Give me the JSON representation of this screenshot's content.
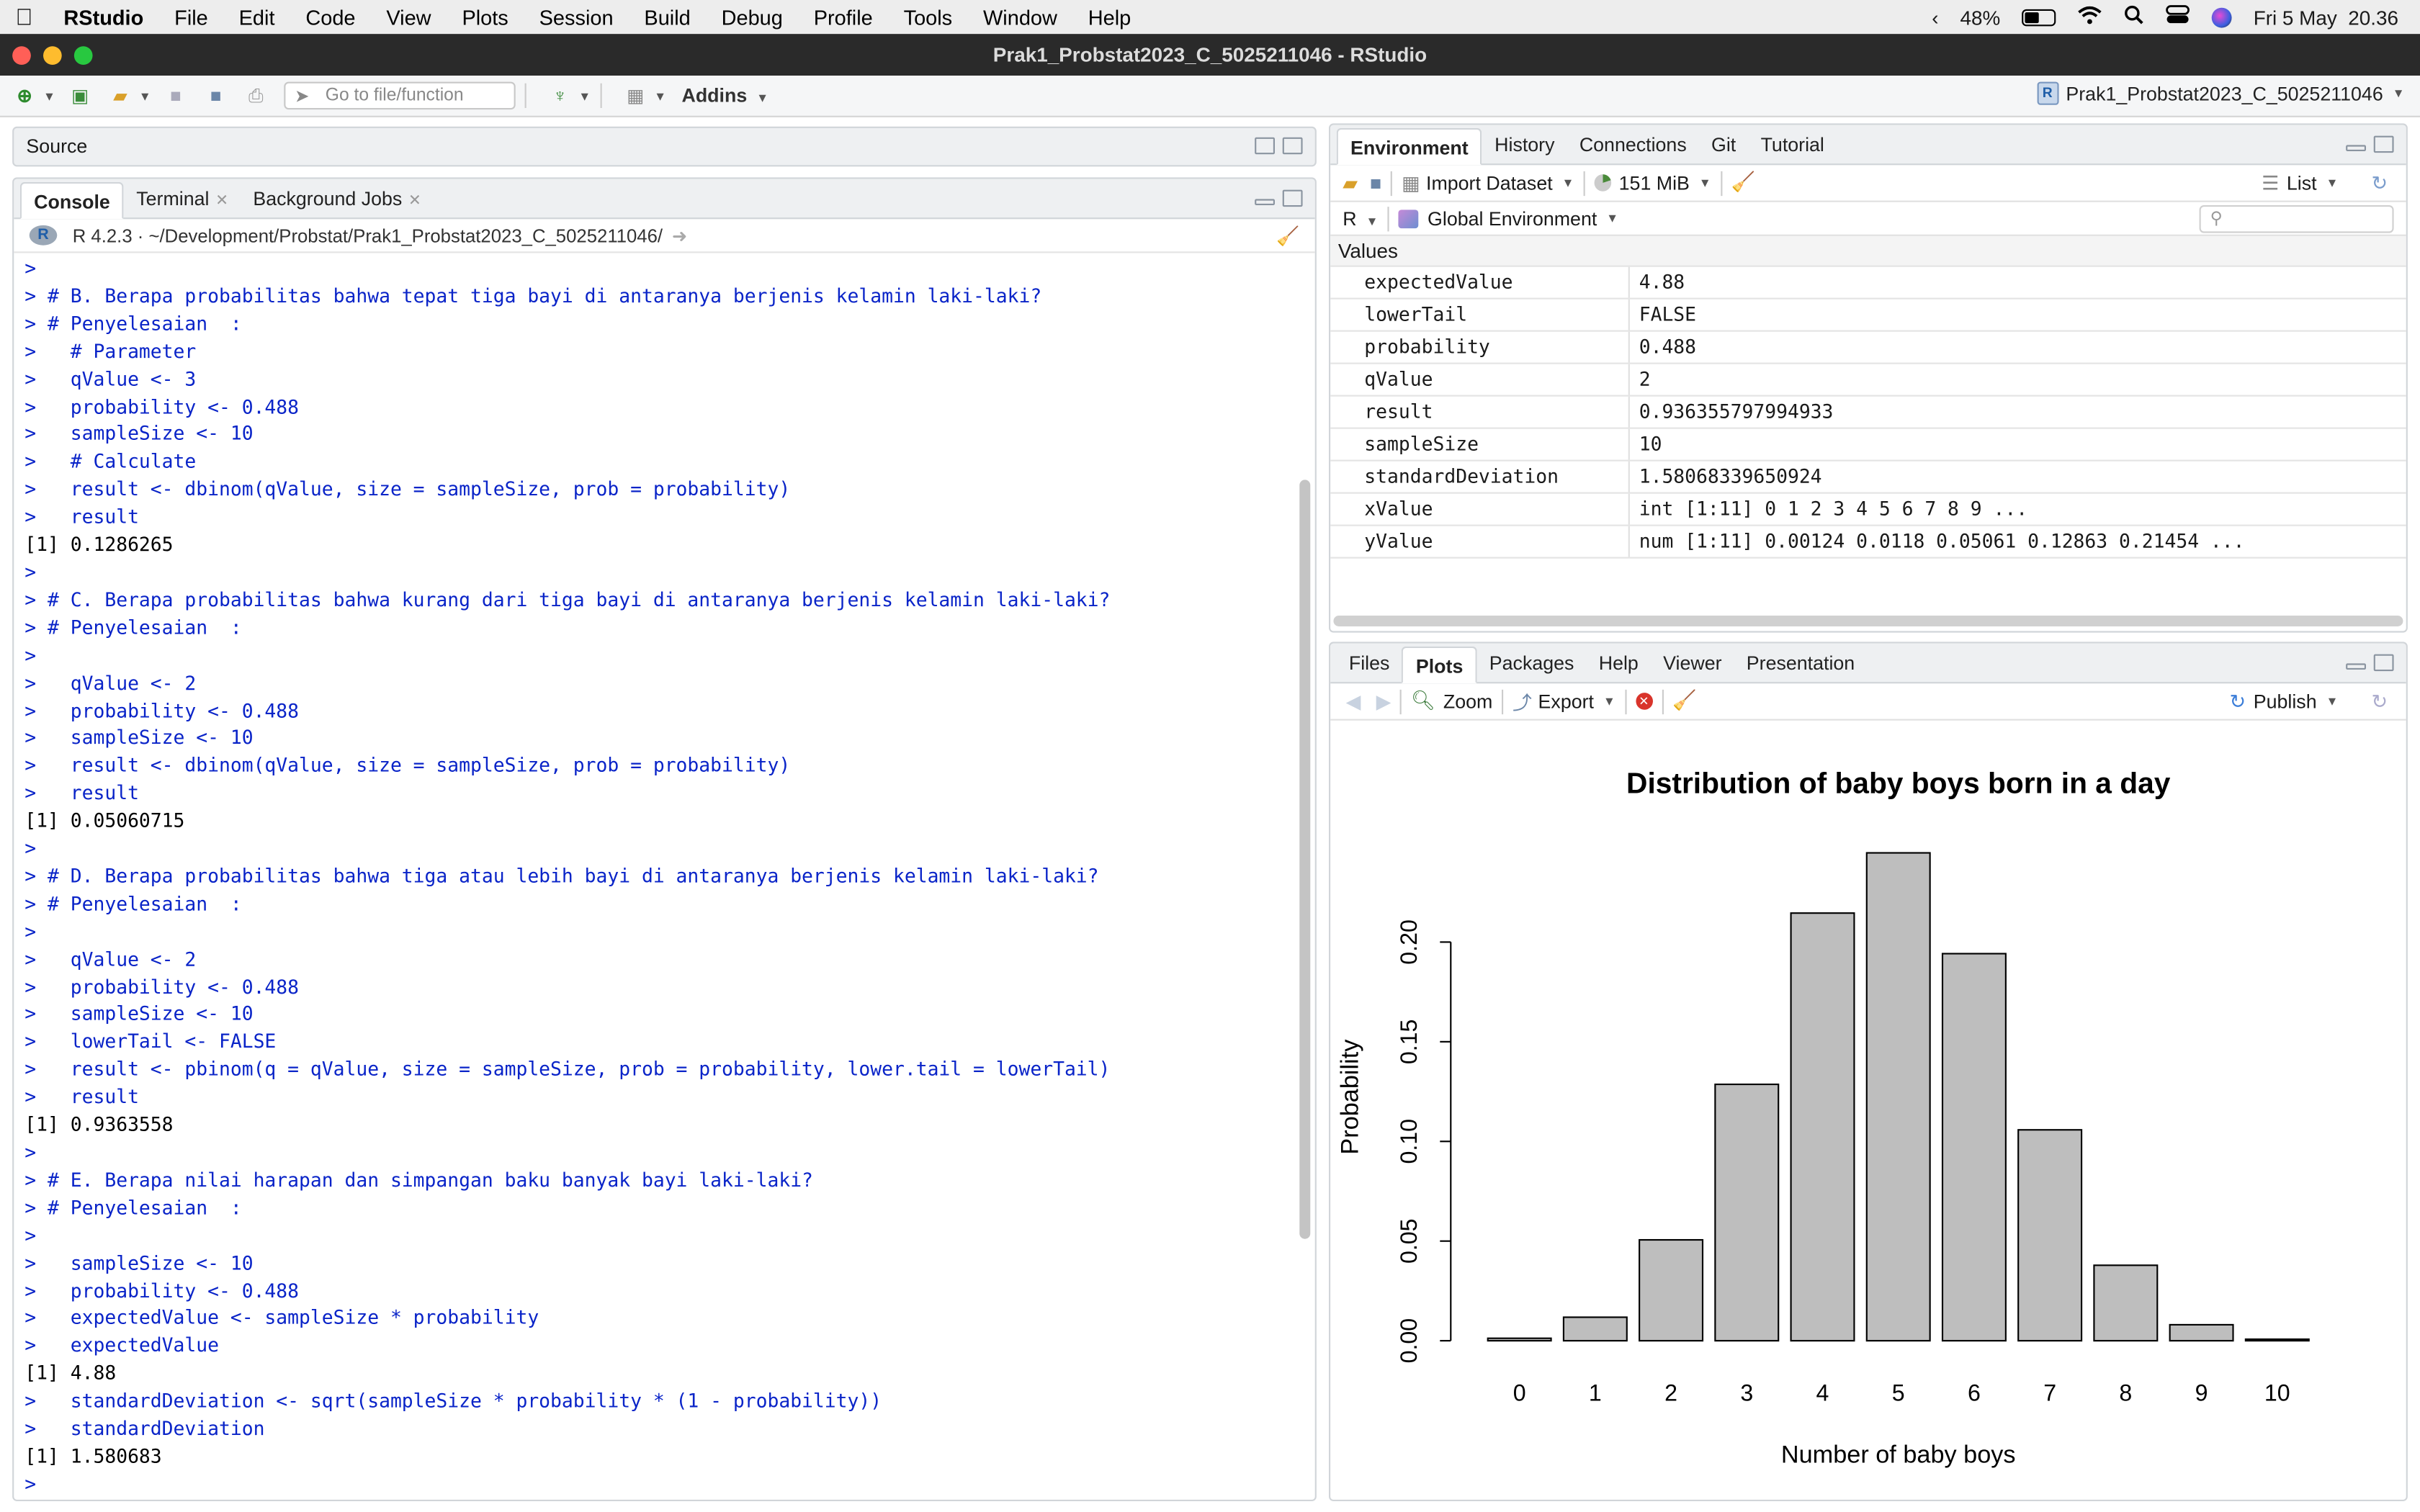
{
  "menubar": {
    "apple": "",
    "app": "RStudio",
    "items": [
      "File",
      "Edit",
      "Code",
      "View",
      "Plots",
      "Session",
      "Build",
      "Debug",
      "Profile",
      "Tools",
      "Window",
      "Help"
    ],
    "battery": "48%",
    "datetime": "Fri 5 May  20.36"
  },
  "window": {
    "title": "Prak1_Probstat2023_C_5025211046 - RStudio"
  },
  "toolbar": {
    "goto_placeholder": "Go to file/function",
    "addins": "Addins",
    "project": "Prak1_Probstat2023_C_5025211046"
  },
  "source": {
    "label": "Source"
  },
  "console": {
    "tabs": [
      "Console",
      "Terminal",
      "Background Jobs"
    ],
    "path": "R 4.2.3 · ~/Development/Probstat/Prak1_Probstat2023_C_5025211046/",
    "lines": [
      {
        "t": "c",
        "s": ">"
      },
      {
        "t": "c",
        "s": "> # B. Berapa probabilitas bahwa tepat tiga bayi di antaranya berjenis kelamin laki-laki?"
      },
      {
        "t": "c",
        "s": "> # Penyelesaian  :"
      },
      {
        "t": "c",
        "s": ">   # Parameter"
      },
      {
        "t": "c",
        "s": ">   qValue <- 3"
      },
      {
        "t": "c",
        "s": ">   probability <- 0.488"
      },
      {
        "t": "c",
        "s": ">   sampleSize <- 10"
      },
      {
        "t": "c",
        "s": ">   # Calculate"
      },
      {
        "t": "c",
        "s": ">   result <- dbinom(qValue, size = sampleSize, prob = probability)"
      },
      {
        "t": "c",
        "s": ">   result"
      },
      {
        "t": "o",
        "s": "[1] 0.1286265"
      },
      {
        "t": "c",
        "s": ">"
      },
      {
        "t": "c",
        "s": "> # C. Berapa probabilitas bahwa kurang dari tiga bayi di antaranya berjenis kelamin laki-laki?"
      },
      {
        "t": "c",
        "s": "> # Penyelesaian  :"
      },
      {
        "t": "c",
        "s": ">"
      },
      {
        "t": "c",
        "s": ">   qValue <- 2"
      },
      {
        "t": "c",
        "s": ">   probability <- 0.488"
      },
      {
        "t": "c",
        "s": ">   sampleSize <- 10"
      },
      {
        "t": "c",
        "s": ">   result <- dbinom(qValue, size = sampleSize, prob = probability)"
      },
      {
        "t": "c",
        "s": ">   result"
      },
      {
        "t": "o",
        "s": "[1] 0.05060715"
      },
      {
        "t": "c",
        "s": ">"
      },
      {
        "t": "c",
        "s": "> # D. Berapa probabilitas bahwa tiga atau lebih bayi di antaranya berjenis kelamin laki-laki?"
      },
      {
        "t": "c",
        "s": "> # Penyelesaian  :"
      },
      {
        "t": "c",
        "s": ">"
      },
      {
        "t": "c",
        "s": ">   qValue <- 2"
      },
      {
        "t": "c",
        "s": ">   probability <- 0.488"
      },
      {
        "t": "c",
        "s": ">   sampleSize <- 10"
      },
      {
        "t": "c",
        "s": ">   lowerTail <- FALSE"
      },
      {
        "t": "c",
        "s": ">   result <- pbinom(q = qValue, size = sampleSize, prob = probability, lower.tail = lowerTail)"
      },
      {
        "t": "c",
        "s": ">   result"
      },
      {
        "t": "o",
        "s": "[1] 0.9363558"
      },
      {
        "t": "c",
        "s": ">"
      },
      {
        "t": "c",
        "s": "> # E. Berapa nilai harapan dan simpangan baku banyak bayi laki-laki?"
      },
      {
        "t": "c",
        "s": "> # Penyelesaian  :"
      },
      {
        "t": "c",
        "s": ">"
      },
      {
        "t": "c",
        "s": ">   sampleSize <- 10"
      },
      {
        "t": "c",
        "s": ">   probability <- 0.488"
      },
      {
        "t": "c",
        "s": ">   expectedValue <- sampleSize * probability"
      },
      {
        "t": "c",
        "s": ">   expectedValue"
      },
      {
        "t": "o",
        "s": "[1] 4.88"
      },
      {
        "t": "c",
        "s": ">   standardDeviation <- sqrt(sampleSize * probability * (1 - probability))"
      },
      {
        "t": "c",
        "s": ">   standardDeviation"
      },
      {
        "t": "o",
        "s": "[1] 1.580683"
      },
      {
        "t": "c",
        "s": ">"
      }
    ]
  },
  "environment": {
    "tabs": [
      "Environment",
      "History",
      "Connections",
      "Git",
      "Tutorial"
    ],
    "import_dataset": "Import Dataset",
    "memory": "151 MiB",
    "view_mode": "List",
    "language": "R",
    "scope": "Global Environment",
    "section": "Values",
    "values": [
      {
        "k": "expectedValue",
        "v": "4.88"
      },
      {
        "k": "lowerTail",
        "v": "FALSE"
      },
      {
        "k": "probability",
        "v": "0.488"
      },
      {
        "k": "qValue",
        "v": "2"
      },
      {
        "k": "result",
        "v": "0.936355797994933"
      },
      {
        "k": "sampleSize",
        "v": "10"
      },
      {
        "k": "standardDeviation",
        "v": "1.58068339650924"
      },
      {
        "k": "xValue",
        "v": "int [1:11] 0 1 2 3 4 5 6 7 8 9 ..."
      },
      {
        "k": "yValue",
        "v": "num [1:11] 0.00124 0.0118 0.05061 0.12863 0.21454 ..."
      }
    ]
  },
  "plots": {
    "tabs": [
      "Files",
      "Plots",
      "Packages",
      "Help",
      "Viewer",
      "Presentation"
    ],
    "zoom": "Zoom",
    "export": "Export",
    "publish": "Publish"
  },
  "chart_data": {
    "type": "bar",
    "title": "Distribution of baby boys born in a day",
    "xlabel": "Number of baby boys",
    "ylabel": "Probability",
    "categories": [
      "0",
      "1",
      "2",
      "3",
      "4",
      "5",
      "6",
      "7",
      "8",
      "9",
      "10"
    ],
    "values": [
      0.00124,
      0.0118,
      0.05061,
      0.12863,
      0.21454,
      0.24475,
      0.19419,
      0.1058,
      0.03786,
      0.00803,
      0.00077
    ],
    "ylim": [
      0,
      0.25
    ],
    "yticks": [
      "0.00",
      "0.05",
      "0.10",
      "0.15",
      "0.20"
    ],
    "bar_color": "#bebebe",
    "grid": false
  },
  "colors": {
    "console_code": "#0a24c8",
    "titlebar": "#2a2a2a"
  }
}
